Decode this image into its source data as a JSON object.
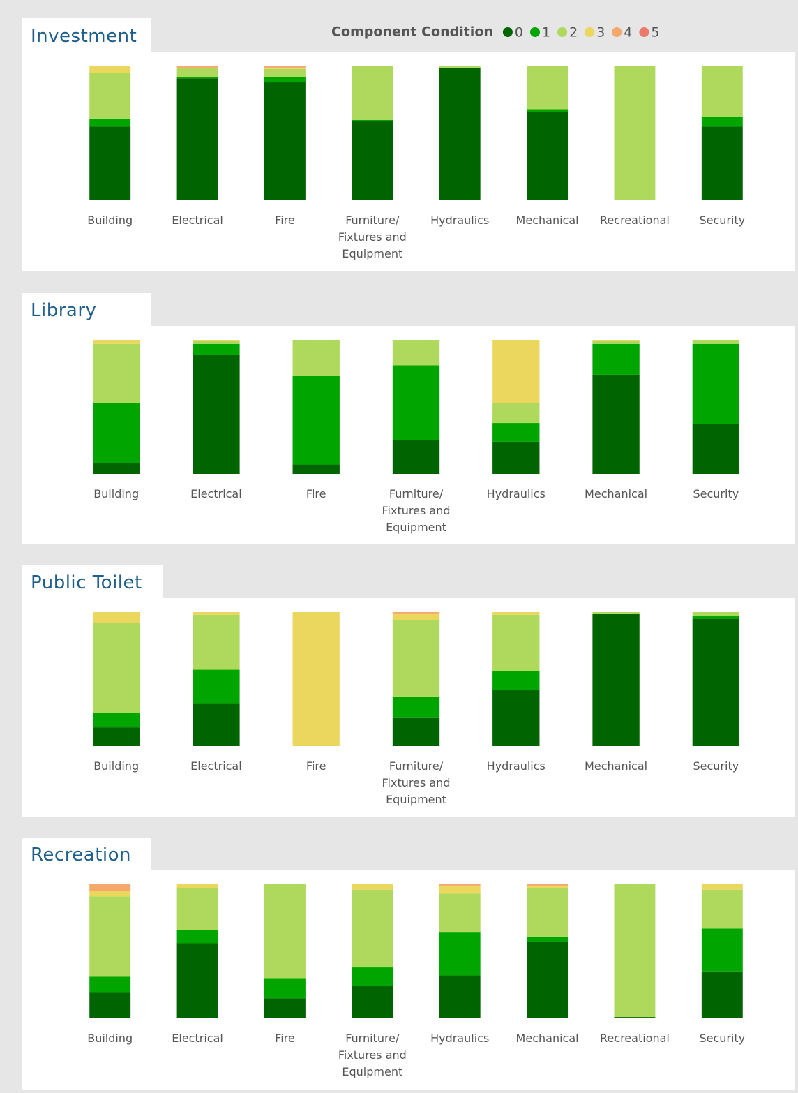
{
  "chart_data": [
    {
      "type": "bar",
      "stacked": true,
      "title": "Investment",
      "legend_title": "Component Condition",
      "categories": [
        "Building",
        "Electrical",
        "Fire",
        "Furniture/ Fixtures and Equipment",
        "Hydraulics",
        "Mechanical",
        "Recreational",
        "Security"
      ],
      "series": [
        {
          "name": "0",
          "color": "#006400",
          "values": [
            55,
            91,
            88,
            59,
            99,
            66,
            0,
            55
          ]
        },
        {
          "name": "1",
          "color": "#00a500",
          "values": [
            6,
            1,
            4,
            1,
            0,
            2,
            0,
            7
          ]
        },
        {
          "name": "2",
          "color": "#aed95c",
          "values": [
            34,
            7,
            6,
            40,
            1,
            32,
            100,
            38
          ]
        },
        {
          "name": "3",
          "color": "#ecd75e",
          "values": [
            5,
            0,
            1,
            0,
            0,
            0,
            0,
            0
          ]
        },
        {
          "name": "4",
          "color": "#f5a86c",
          "values": [
            0,
            1,
            1,
            0,
            0,
            0,
            0,
            0
          ]
        },
        {
          "name": "5",
          "color": "#ea7a6a",
          "values": [
            0,
            0,
            0,
            0,
            0,
            0,
            0,
            0
          ]
        }
      ]
    },
    {
      "type": "bar",
      "stacked": true,
      "title": "Library",
      "categories": [
        "Building",
        "Electrical",
        "Fire",
        "Furniture/ Fixtures and Equipment",
        "Hydraulics",
        "Mechanical",
        "Security"
      ],
      "series": [
        {
          "name": "0",
          "color": "#006400",
          "values": [
            8,
            89,
            7,
            25,
            24,
            74,
            37
          ]
        },
        {
          "name": "1",
          "color": "#00a500",
          "values": [
            45,
            8,
            66,
            56,
            14,
            23,
            60
          ]
        },
        {
          "name": "2",
          "color": "#aed95c",
          "values": [
            44,
            2,
            27,
            19,
            15,
            2,
            3
          ]
        },
        {
          "name": "3",
          "color": "#ecd75e",
          "values": [
            3,
            1,
            0,
            0,
            47,
            1,
            0
          ]
        },
        {
          "name": "4",
          "color": "#f5a86c",
          "values": [
            0,
            0,
            0,
            0,
            0,
            0,
            0
          ]
        },
        {
          "name": "5",
          "color": "#ea7a6a",
          "values": [
            0,
            0,
            0,
            0,
            0,
            0,
            0
          ]
        }
      ]
    },
    {
      "type": "bar",
      "stacked": true,
      "title": "Public Toilet",
      "categories": [
        "Building",
        "Electrical",
        "Fire",
        "Furniture/ Fixtures and Equipment",
        "Hydraulics",
        "Mechanical",
        "Security"
      ],
      "series": [
        {
          "name": "0",
          "color": "#006400",
          "values": [
            14,
            32,
            0,
            21,
            42,
            99,
            95
          ]
        },
        {
          "name": "1",
          "color": "#00a500",
          "values": [
            11,
            25,
            0,
            16,
            14,
            0,
            2
          ]
        },
        {
          "name": "2",
          "color": "#aed95c",
          "values": [
            67,
            41,
            0,
            57,
            42,
            1,
            3
          ]
        },
        {
          "name": "3",
          "color": "#ecd75e",
          "values": [
            8,
            2,
            100,
            5,
            2,
            0,
            0
          ]
        },
        {
          "name": "4",
          "color": "#f5a86c",
          "values": [
            0,
            0,
            0,
            1,
            0,
            0,
            0
          ]
        },
        {
          "name": "5",
          "color": "#ea7a6a",
          "values": [
            0,
            0,
            0,
            0,
            0,
            0,
            0
          ]
        }
      ]
    },
    {
      "type": "bar",
      "stacked": true,
      "title": "Recreation",
      "categories": [
        "Building",
        "Electrical",
        "Fire",
        "Furniture/ Fixtures and Equipment",
        "Hydraulics",
        "Mechanical",
        "Recreational",
        "Security"
      ],
      "series": [
        {
          "name": "0",
          "color": "#006400",
          "values": [
            19,
            56,
            15,
            24,
            32,
            57,
            1,
            35
          ]
        },
        {
          "name": "1",
          "color": "#00a500",
          "values": [
            12,
            10,
            15,
            14,
            32,
            4,
            0,
            32
          ]
        },
        {
          "name": "2",
          "color": "#aed95c",
          "values": [
            60,
            31,
            70,
            58,
            29,
            36,
            99,
            29
          ]
        },
        {
          "name": "3",
          "color": "#ecd75e",
          "values": [
            4,
            3,
            0,
            4,
            6,
            2,
            0,
            4
          ]
        },
        {
          "name": "4",
          "color": "#f5a86c",
          "values": [
            5,
            0,
            0,
            0,
            1,
            1,
            0,
            0
          ]
        },
        {
          "name": "5",
          "color": "#ea7a6a",
          "values": [
            0,
            0,
            0,
            0,
            0,
            0,
            0,
            0
          ]
        }
      ]
    }
  ]
}
